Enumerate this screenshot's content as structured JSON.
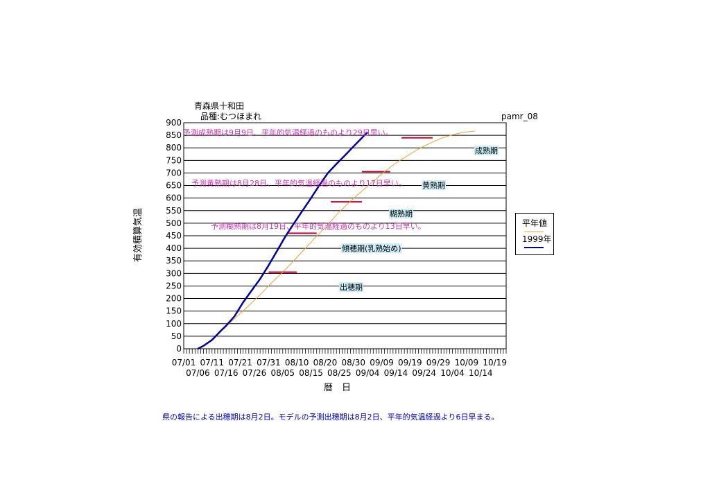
{
  "header": {
    "title_line1": "青森県十和田",
    "title_line2": "品種:むつほまれ",
    "code": "pamr_08"
  },
  "chart_data": {
    "type": "line",
    "ylabel": "有効積算気温",
    "xlabel": "暦　日",
    "ylim": [
      0,
      900
    ],
    "y_ticks": [
      0,
      50,
      100,
      150,
      200,
      250,
      300,
      350,
      400,
      450,
      500,
      550,
      600,
      650,
      700,
      750,
      800,
      850,
      900
    ],
    "x_start": "07/01",
    "x_end": "10/23",
    "x_tick_labels_upper": [
      "07/01",
      "07/11",
      "07/21",
      "07/31",
      "08/10",
      "08/20",
      "08/30",
      "09/09",
      "09/19",
      "09/29",
      "10/09",
      "10/19"
    ],
    "x_tick_labels_lower": [
      "07/06",
      "07/16",
      "07/26",
      "08/05",
      "08/15",
      "08/25",
      "09/04",
      "09/14",
      "09/24",
      "10/04",
      "10/14"
    ],
    "grid": true,
    "legend_position": "right",
    "series": [
      {
        "name": "平年値",
        "color": "#f0a030",
        "points": [
          [
            "07/06",
            0
          ],
          [
            "07/09",
            20
          ],
          [
            "07/12",
            48
          ],
          [
            "07/16",
            90
          ],
          [
            "07/19",
            120
          ],
          [
            "07/24",
            172
          ],
          [
            "07/28",
            215
          ],
          [
            "08/01",
            262
          ],
          [
            "08/05",
            305
          ],
          [
            "08/09",
            352
          ],
          [
            "08/13",
            400
          ],
          [
            "08/17",
            448
          ],
          [
            "08/21",
            495
          ],
          [
            "08/25",
            545
          ],
          [
            "08/29",
            588
          ],
          [
            "09/02",
            628
          ],
          [
            "09/06",
            667
          ],
          [
            "09/10",
            705
          ],
          [
            "09/14",
            740
          ],
          [
            "09/18",
            768
          ],
          [
            "09/22",
            795
          ],
          [
            "09/26",
            818
          ],
          [
            "09/30",
            838
          ],
          [
            "10/04",
            852
          ],
          [
            "10/08",
            862
          ],
          [
            "10/12",
            867
          ]
        ]
      },
      {
        "name": "1999年",
        "color": "#000099",
        "points": [
          [
            "07/06",
            0
          ],
          [
            "07/08",
            12
          ],
          [
            "07/11",
            35
          ],
          [
            "07/14",
            70
          ],
          [
            "07/16",
            92
          ],
          [
            "07/19",
            130
          ],
          [
            "07/22",
            185
          ],
          [
            "07/25",
            232
          ],
          [
            "07/28",
            278
          ],
          [
            "07/31",
            332
          ],
          [
            "08/03",
            390
          ],
          [
            "08/06",
            448
          ],
          [
            "08/09",
            500
          ],
          [
            "08/12",
            550
          ],
          [
            "08/15",
            600
          ],
          [
            "08/18",
            652
          ],
          [
            "08/21",
            700
          ],
          [
            "08/24",
            736
          ],
          [
            "08/27",
            770
          ],
          [
            "08/30",
            805
          ],
          [
            "09/02",
            840
          ],
          [
            "09/04",
            862
          ]
        ]
      }
    ],
    "stage_markers": [
      {
        "label": "出穂期",
        "date_start": "07/31",
        "date_end": "08/10",
        "value": 305
      },
      {
        "label": "傾穂期(乳熟始め)",
        "date_start": "08/07",
        "date_end": "08/17",
        "value": 460
      },
      {
        "label": "糊熟期",
        "date_start": "08/22",
        "date_end": "09/02",
        "value": 585
      },
      {
        "label": "黄熟期",
        "date_start": "09/02",
        "date_end": "09/12",
        "value": 705
      },
      {
        "label": "成熟期",
        "date_start": "09/16",
        "date_end": "09/27",
        "value": 840
      }
    ],
    "annotations": [
      "予測成熟期は9月9日、平年的気温経過のものより29日早い。",
      "予測黄熟期は8月28日、平年的気温経過のものより17日早い。",
      "予測糊熟期は8月19日、平年的気温経過のものより13日早い。"
    ]
  },
  "footer": {
    "note": "県の報告による出穂期は8月2日。モデルの予測出穂期は8月2日、平年的気温経過より6日早まる。"
  }
}
